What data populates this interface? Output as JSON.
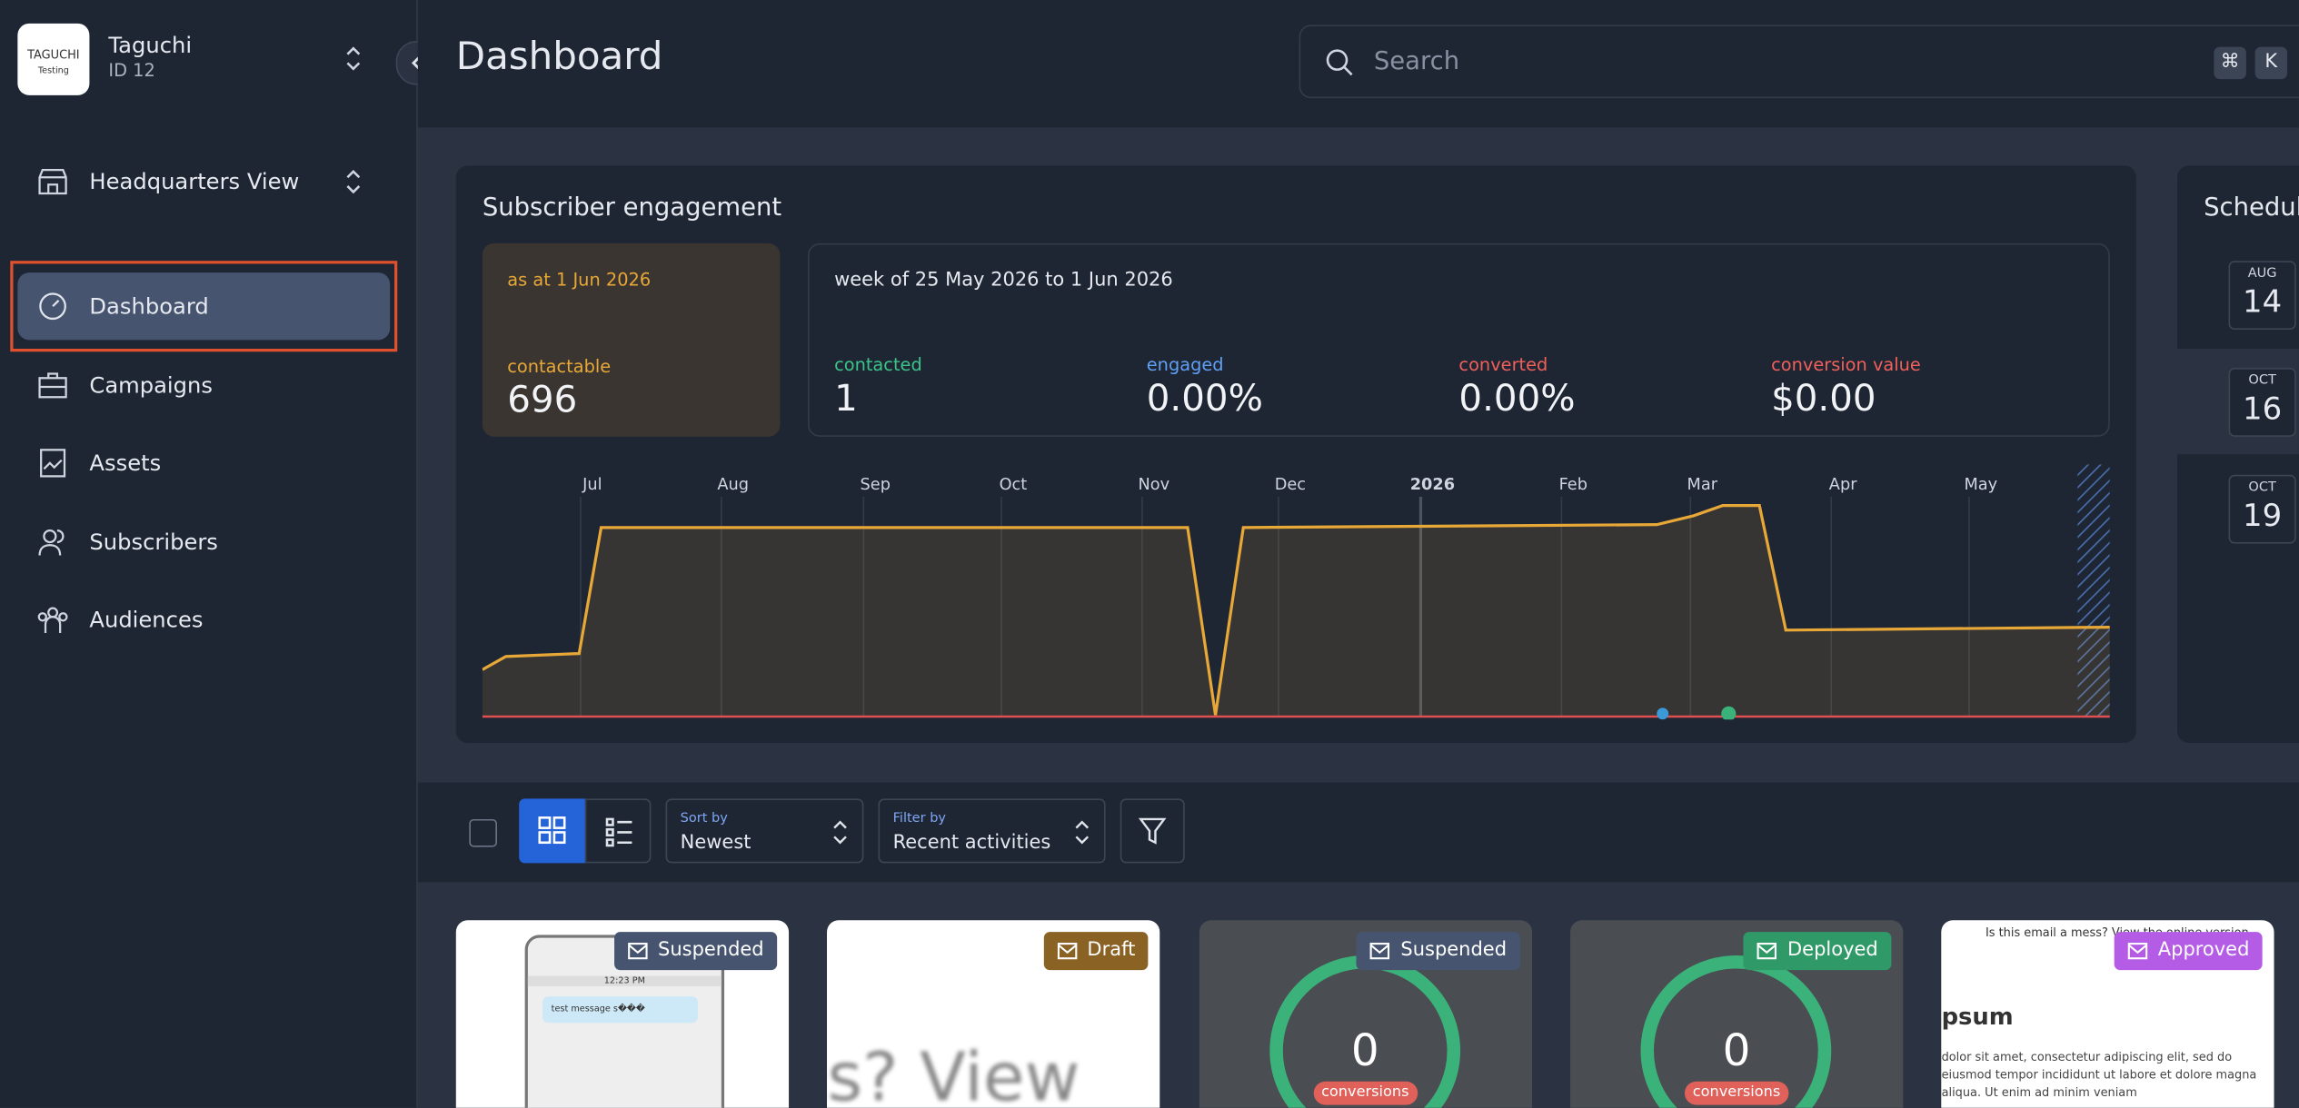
{
  "sidebar": {
    "logo": {
      "brand": "TAGUCHI",
      "sub": "Testing"
    },
    "org_name": "Taguchi",
    "org_id": "ID 12",
    "view": "Headquarters View",
    "nav": [
      "Dashboard",
      "Campaigns",
      "Assets",
      "Subscribers",
      "Audiences"
    ]
  },
  "header": {
    "title": "Dashboard",
    "search_placeholder": "Search",
    "shortcut": [
      "⌘",
      "K"
    ]
  },
  "engagement": {
    "title": "Subscriber engagement",
    "as_at": "as at 1 Jun 2026",
    "contactable_label": "contactable",
    "contactable_value": "696",
    "week": "week of 25 May 2026 to 1 Jun 2026",
    "stats": [
      {
        "label": "contacted",
        "value": "1"
      },
      {
        "label": "engaged",
        "value": "0.00%"
      },
      {
        "label": "converted",
        "value": "0.00%"
      },
      {
        "label": "conversion value",
        "value": "$0.00"
      }
    ],
    "months": [
      "Jul",
      "Aug",
      "Sep",
      "Oct",
      "Nov",
      "Dec",
      "2026",
      "Feb",
      "Mar",
      "Apr",
      "May"
    ]
  },
  "schedule": {
    "title": "Schedule",
    "dates": [
      {
        "month": "AUG",
        "day": "14"
      },
      {
        "month": "OCT",
        "day": "16"
      },
      {
        "month": "OCT",
        "day": "19"
      }
    ]
  },
  "toolbar": {
    "sort_label": "Sort by",
    "sort_value": "Newest",
    "filter_label": "Filter by",
    "filter_value": "Recent activities"
  },
  "cards": [
    {
      "status": "Suspended",
      "time": "12:23 PM",
      "message": "test message s���"
    },
    {
      "status": "Draft",
      "preview": "s? View"
    },
    {
      "status": "Suspended",
      "count": "0",
      "count_label": "conversions"
    },
    {
      "status": "Deployed",
      "count": "0",
      "count_label": "conversions"
    },
    {
      "status": "Approved",
      "header": "Is this email a mess? View the online version",
      "heading": "psum",
      "body": "dolor sit amet, consectetur adipiscing elit, sed do eiusmod tempor incididunt ut labore et dolore magna aliqua. Ut enim ad minim veniam"
    }
  ]
}
